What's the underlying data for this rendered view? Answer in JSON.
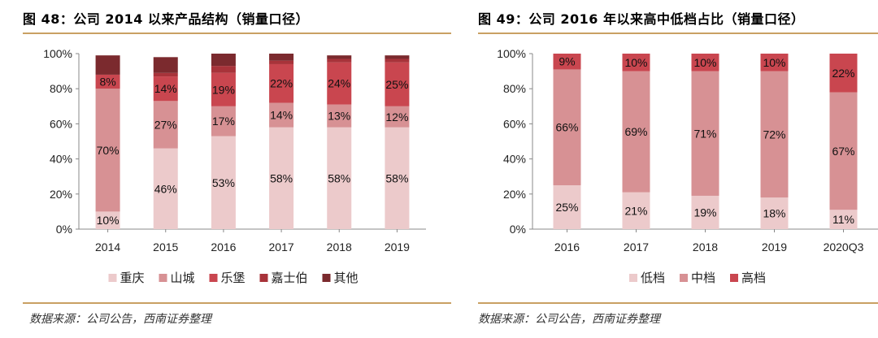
{
  "left": {
    "title": "图 48：公司 2014 以来产品结构（销量口径）",
    "source": "数据来源：公司公告，西南证券整理"
  },
  "right": {
    "title": "图 49：公司 2016 年以来高中低档占比（销量口径）",
    "source": "数据来源：公司公告，西南证券整理"
  },
  "chart_data": [
    {
      "type": "bar",
      "stacked": true,
      "title": "图 48：公司 2014 以来产品结构（销量口径）",
      "categories": [
        "2014",
        "2015",
        "2016",
        "2017",
        "2018",
        "2019"
      ],
      "ylim": [
        0,
        100
      ],
      "yticks": [
        "0%",
        "20%",
        "40%",
        "60%",
        "80%",
        "100%"
      ],
      "series": [
        {
          "name": "重庆",
          "color": "#eccacb",
          "values": [
            10,
            46,
            53,
            58,
            58,
            58
          ],
          "labels": [
            "10%",
            "46%",
            "53%",
            "58%",
            "58%",
            "58%"
          ]
        },
        {
          "name": "山城",
          "color": "#d79194",
          "values": [
            70,
            27,
            17,
            14,
            13,
            12
          ],
          "labels": [
            "70%",
            "27%",
            "17%",
            "14%",
            "13%",
            "12%"
          ]
        },
        {
          "name": "乐堡",
          "color": "#c9464f",
          "values": [
            8,
            14,
            19,
            22,
            24,
            25
          ],
          "labels": [
            "8%",
            "14%",
            "19%",
            "22%",
            "24%",
            "25%"
          ]
        },
        {
          "name": "嘉士伯",
          "color": "#a8333a",
          "values": [
            0,
            2,
            4,
            2,
            2,
            2
          ],
          "labels": [
            "",
            "",
            "",
            "",
            "",
            ""
          ]
        },
        {
          "name": "其他",
          "color": "#7b2a2e",
          "values": [
            11,
            9,
            7,
            4,
            2,
            2
          ],
          "labels": [
            "",
            "",
            "",
            "",
            "",
            ""
          ]
        }
      ],
      "legend": "bottom"
    },
    {
      "type": "bar",
      "stacked": true,
      "title": "图 49：公司 2016 年以来高中低档占比（销量口径）",
      "categories": [
        "2016",
        "2017",
        "2018",
        "2019",
        "2020Q3"
      ],
      "ylim": [
        0,
        100
      ],
      "yticks": [
        "0%",
        "20%",
        "40%",
        "60%",
        "80%",
        "100%"
      ],
      "series": [
        {
          "name": "低档",
          "color": "#eccacb",
          "values": [
            25,
            21,
            19,
            18,
            11
          ],
          "labels": [
            "25%",
            "21%",
            "19%",
            "18%",
            "11%"
          ]
        },
        {
          "name": "中档",
          "color": "#d79194",
          "values": [
            66,
            69,
            71,
            72,
            67
          ],
          "labels": [
            "66%",
            "69%",
            "71%",
            "72%",
            "67%"
          ]
        },
        {
          "name": "高档",
          "color": "#c9464f",
          "values": [
            9,
            10,
            10,
            10,
            22
          ],
          "labels": [
            "9%",
            "10%",
            "10%",
            "10%",
            "22%"
          ]
        }
      ],
      "legend": "bottom"
    }
  ]
}
